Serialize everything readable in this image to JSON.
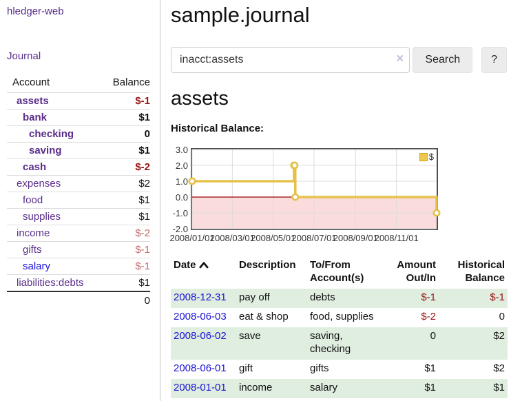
{
  "colors": {
    "accent_purple": "#5a2d8a",
    "link_blue": "#1b13d6",
    "negative_strong": "#991111",
    "negative_soft": "#c26a6a",
    "row_green": "#e0eee0",
    "chart_line_gold": "#e6c14a",
    "chart_negative_fill": "#fbdcdc",
    "chart_zero_line": "#990000"
  },
  "sidebar": {
    "app_title": "hledger-web",
    "journal_link": "Journal",
    "accounts_table": {
      "columns": {
        "account": "Account",
        "balance": "Balance"
      },
      "rows": [
        {
          "name": "assets",
          "level": 1,
          "bold": true,
          "link_color": "purple",
          "balance": "$-1",
          "balance_tone": "negative-strong"
        },
        {
          "name": "bank",
          "level": 2,
          "bold": true,
          "link_color": "purple",
          "balance": "$1",
          "balance_tone": "normal"
        },
        {
          "name": "checking",
          "level": 3,
          "bold": true,
          "link_color": "purple",
          "balance": "0",
          "balance_tone": "normal"
        },
        {
          "name": "saving",
          "level": 3,
          "bold": true,
          "link_color": "purple",
          "balance": "$1",
          "balance_tone": "normal"
        },
        {
          "name": "cash",
          "level": 2,
          "bold": true,
          "link_color": "purple",
          "balance": "$-2",
          "balance_tone": "negative-strong"
        },
        {
          "name": "expenses",
          "level": 1,
          "bold": false,
          "link_color": "purple",
          "balance": "$2",
          "balance_tone": "normal"
        },
        {
          "name": "food",
          "level": 2,
          "bold": false,
          "link_color": "purple",
          "balance": "$1",
          "balance_tone": "normal"
        },
        {
          "name": "supplies",
          "level": 2,
          "bold": false,
          "link_color": "purple",
          "balance": "$1",
          "balance_tone": "normal"
        },
        {
          "name": "income",
          "level": 1,
          "bold": false,
          "link_color": "purple",
          "balance": "$-2",
          "balance_tone": "negative-soft"
        },
        {
          "name": "gifts",
          "level": 2,
          "bold": false,
          "link_color": "purple",
          "balance": "$-1",
          "balance_tone": "negative-soft"
        },
        {
          "name": "salary",
          "level": 2,
          "bold": false,
          "link_color": "blue",
          "balance": "$-1",
          "balance_tone": "negative-soft"
        },
        {
          "name": "liabilities:debts",
          "level": 1,
          "bold": false,
          "link_color": "purple",
          "balance": "$1",
          "balance_tone": "normal"
        }
      ],
      "total": "0"
    }
  },
  "header": {
    "title": "sample.journal"
  },
  "search": {
    "value": "inacct:assets",
    "clear_icon": "×",
    "button_label": "Search",
    "help_label": "?"
  },
  "account_page": {
    "heading": "assets"
  },
  "chart_data": {
    "type": "line",
    "step": true,
    "title": "Historical Balance:",
    "legend": {
      "label": "$",
      "position": "top-right"
    },
    "x_range": [
      "2008-01-01",
      "2008-12-31"
    ],
    "ylim": [
      -2,
      3
    ],
    "grid": true,
    "series": [
      {
        "name": "$",
        "color": "#e6c14a",
        "points": [
          {
            "x": "2008-01-01",
            "y": 1
          },
          {
            "x": "2008-06-01",
            "y": 2
          },
          {
            "x": "2008-06-02",
            "y": 2
          },
          {
            "x": "2008-06-03",
            "y": 0
          },
          {
            "x": "2008-12-31",
            "y": -1
          }
        ]
      }
    ],
    "yticks": [
      {
        "label": "3.0",
        "v": 3
      },
      {
        "label": "2.0",
        "v": 2
      },
      {
        "label": "1.0",
        "v": 1
      },
      {
        "label": "0.0",
        "v": 0
      },
      {
        "label": "-1.0",
        "v": -1
      },
      {
        "label": "-2.0",
        "v": -2
      }
    ],
    "xticks": [
      {
        "label": "2008/01/01",
        "x": "2008-01-01"
      },
      {
        "label": "2008/03/01",
        "x": "2008-03-01"
      },
      {
        "label": "2008/05/01",
        "x": "2008-05-01"
      },
      {
        "label": "2008/07/01",
        "x": "2008-07-01"
      },
      {
        "label": "2008/09/01",
        "x": "2008-09-01"
      },
      {
        "label": "2008/11/01",
        "x": "2008-11-01"
      }
    ],
    "negative_fill": "#fbdcdc",
    "zero_line": "#990000"
  },
  "transactions_table": {
    "headers": {
      "date": "Date",
      "description": "Description",
      "accounts": "To/From Account(s)",
      "amount": "Amount Out/In",
      "historical": "Historical Balance"
    },
    "sort_icon": "chevron-up",
    "rows": [
      {
        "date": "2008-12-31",
        "description": "pay off",
        "accounts": "debts",
        "amount": "$-1",
        "amount_negative": true,
        "historical": "$-1",
        "historical_negative": true
      },
      {
        "date": "2008-06-03",
        "description": "eat & shop",
        "accounts": "food, supplies",
        "amount": "$-2",
        "amount_negative": true,
        "historical": "0",
        "historical_negative": false
      },
      {
        "date": "2008-06-02",
        "description": "save",
        "accounts": "saving, checking",
        "amount": "0",
        "amount_negative": false,
        "historical": "$2",
        "historical_negative": false
      },
      {
        "date": "2008-06-01",
        "description": "gift",
        "accounts": "gifts",
        "amount": "$1",
        "amount_negative": false,
        "historical": "$2",
        "historical_negative": false
      },
      {
        "date": "2008-01-01",
        "description": "income",
        "accounts": "salary",
        "amount": "$1",
        "amount_negative": false,
        "historical": "$1",
        "historical_negative": false
      }
    ]
  }
}
